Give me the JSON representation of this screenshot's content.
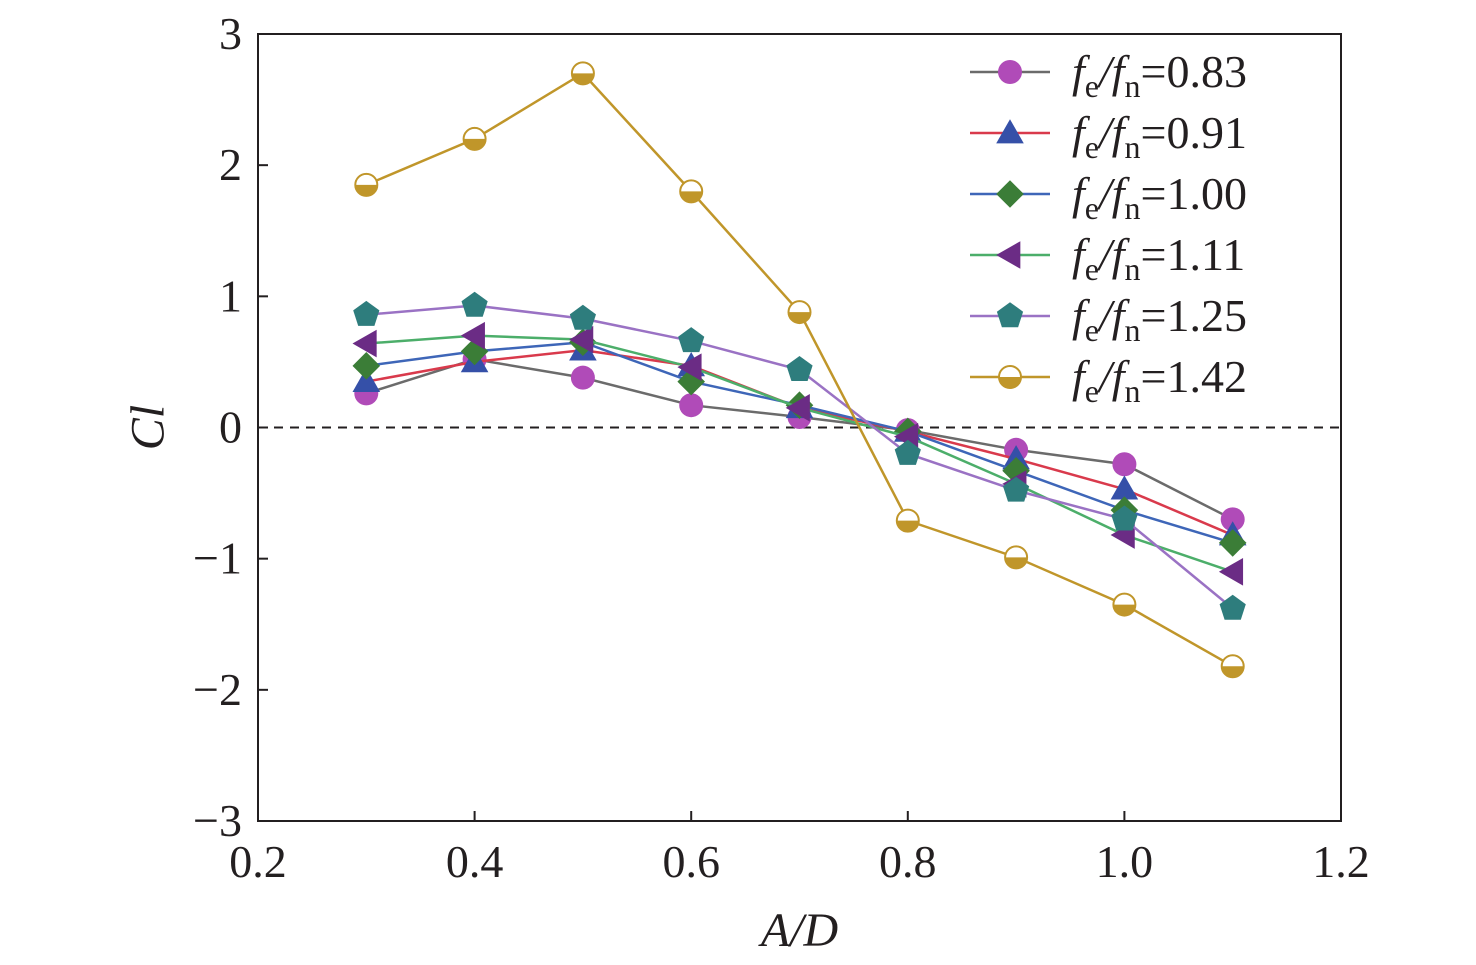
{
  "chart_data": {
    "type": "line",
    "title": "",
    "xlabel": "A/D",
    "ylabel": "Cl",
    "xlim": [
      0.2,
      1.2
    ],
    "ylim": [
      -3,
      3
    ],
    "xticks": [
      "0.2",
      "0.4",
      "0.6",
      "0.8",
      "1.0",
      "1.2"
    ],
    "yticks": [
      "−3",
      "−2",
      "−1",
      "0",
      "1",
      "2",
      "3"
    ],
    "grid": false,
    "legend_position": "top-right",
    "reference_line": {
      "y": 0,
      "style": "dashed"
    },
    "x": [
      0.3,
      0.4,
      0.5,
      0.6,
      0.7,
      0.8,
      0.9,
      1.0,
      1.1
    ],
    "series": [
      {
        "label_prefix": "fe/fn",
        "label_value": "0.83",
        "line_color": "#6b6b6b",
        "marker_color": "#b04bb8",
        "marker": "circle",
        "values": [
          0.26,
          0.52,
          0.38,
          0.17,
          0.08,
          -0.02,
          -0.17,
          -0.28,
          -0.7
        ]
      },
      {
        "label_prefix": "fe/fn",
        "label_value": "0.91",
        "line_color": "#d93a4c",
        "marker_color": "#3550a8",
        "marker": "triangle-up",
        "values": [
          0.35,
          0.5,
          0.59,
          0.47,
          0.15,
          -0.03,
          -0.24,
          -0.47,
          -0.82
        ]
      },
      {
        "label_prefix": "fe/fn",
        "label_value": "1.00",
        "line_color": "#3e66b8",
        "marker_color": "#3b7d37",
        "marker": "diamond",
        "values": [
          0.47,
          0.58,
          0.65,
          0.35,
          0.17,
          -0.03,
          -0.33,
          -0.63,
          -0.88
        ]
      },
      {
        "label_prefix": "fe/fn",
        "label_value": "1.11",
        "line_color": "#4cae6a",
        "marker_color": "#6b2c85",
        "marker": "triangle-left",
        "values": [
          0.64,
          0.7,
          0.67,
          0.46,
          0.15,
          -0.07,
          -0.43,
          -0.82,
          -1.1
        ]
      },
      {
        "label_prefix": "fe/fn",
        "label_value": "1.25",
        "line_color": "#9a72c4",
        "marker_color": "#2e7d7d",
        "marker": "pentagon",
        "values": [
          0.86,
          0.93,
          0.83,
          0.66,
          0.44,
          -0.2,
          -0.48,
          -0.7,
          -1.38
        ]
      },
      {
        "label_prefix": "fe/fn",
        "label_value": "1.42",
        "line_color": "#c0962a",
        "marker_color": "#c0962a",
        "marker": "half-circle",
        "values": [
          1.85,
          2.2,
          2.7,
          1.8,
          0.88,
          -0.71,
          -0.99,
          -1.35,
          -1.82
        ]
      }
    ]
  }
}
